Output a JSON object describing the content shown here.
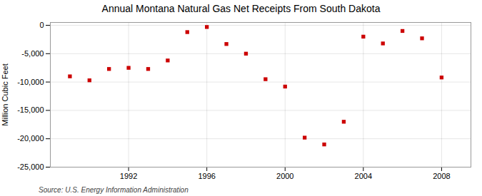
{
  "chart_data": {
    "type": "scatter",
    "title": "Annual Montana Natural Gas Net Receipts From South Dakota",
    "ylabel": "Million Cubic Feet",
    "source": "Source: U.S. Energy Information Administration",
    "x": [
      1989,
      1990,
      1991,
      1992,
      1993,
      1994,
      1995,
      1996,
      1997,
      1998,
      1999,
      2000,
      2001,
      2002,
      2003,
      2004,
      2005,
      2006,
      2007,
      2008
    ],
    "values": [
      -9000,
      -9700,
      -7700,
      -7500,
      -7700,
      -6200,
      -1200,
      -300,
      -3300,
      -5000,
      -9500,
      -10800,
      -19800,
      -21000,
      -17000,
      -2000,
      -3200,
      -1000,
      -2300,
      -9200
    ],
    "color": "#cc0000",
    "marker": "square",
    "xlim": [
      1988.0,
      2009.5
    ],
    "xticks": [
      1992,
      1996,
      2000,
      2004,
      2008
    ],
    "ylim": [
      -25000,
      500
    ],
    "yticks": [
      0,
      {
        "value": -5000,
        "label": "-5,000"
      },
      {
        "value": -10000,
        "label": "-10,000"
      },
      {
        "value": -15000,
        "label": "-15,000"
      },
      {
        "value": -20000,
        "label": "-20,000"
      },
      {
        "value": -25000,
        "label": "-25,000"
      }
    ],
    "grid": true
  }
}
